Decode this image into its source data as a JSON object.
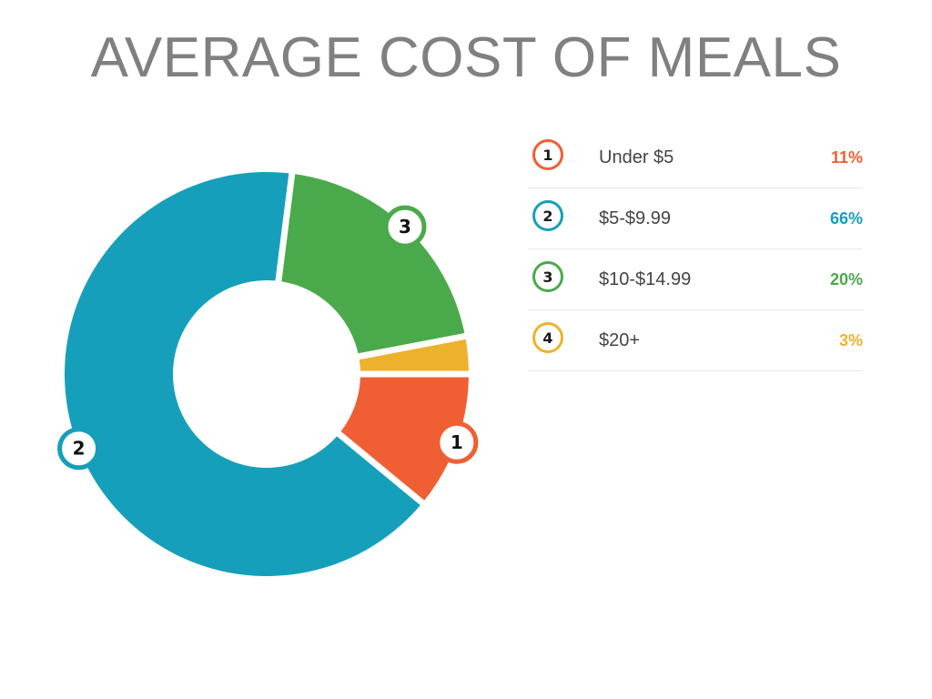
{
  "chart_data": {
    "type": "pie",
    "title": "AVERAGE COST OF MEALS",
    "categories": [
      "Under $5",
      "$5-$9.99",
      "$10-$14.99",
      "$20+"
    ],
    "values": [
      11,
      66,
      20,
      3
    ],
    "value_labels": [
      "11%",
      "66%",
      "20%",
      "3%"
    ],
    "markers": [
      "1",
      "2",
      "3",
      "4"
    ],
    "colors": [
      "#f05f33",
      "#169fbb",
      "#4aaa4b",
      "#edb22c"
    ],
    "marker_shown_on_chart": [
      true,
      true,
      true,
      false
    ],
    "legend": "right",
    "style": "donut"
  }
}
